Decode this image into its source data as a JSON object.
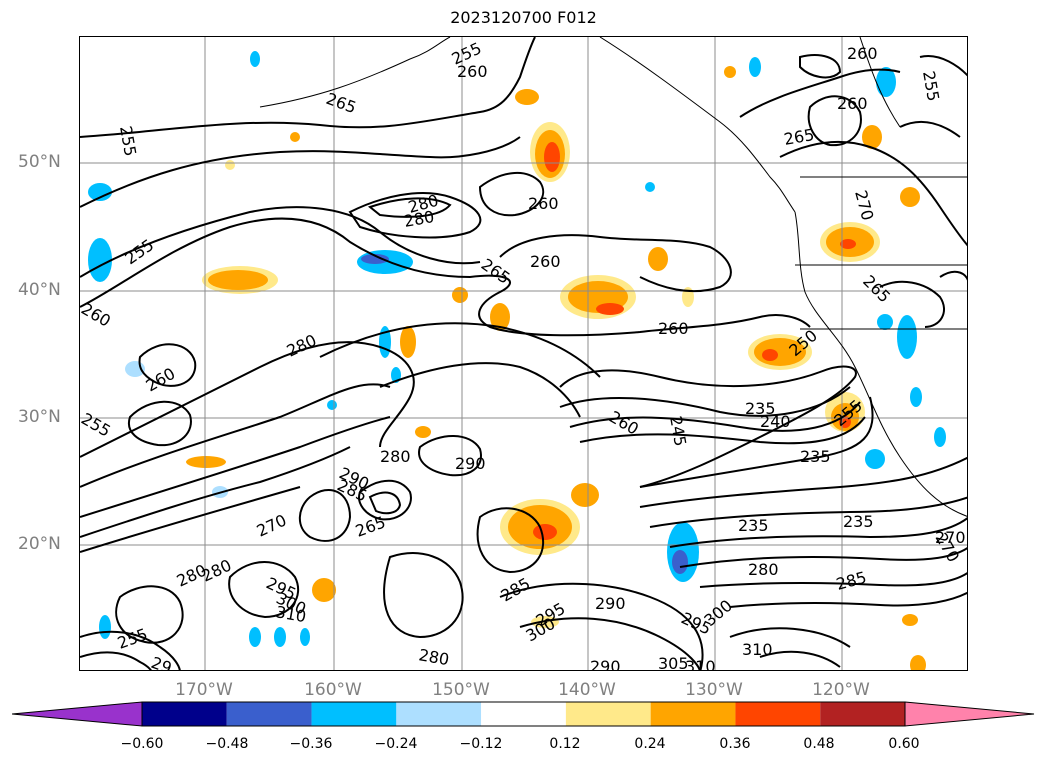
{
  "title": "2023120700 F012",
  "lat_labels": [
    "50°N",
    "40°N",
    "30°N",
    "20°N"
  ],
  "lon_labels": [
    "170°W",
    "160°W",
    "150°W",
    "140°W",
    "130°W",
    "120°W"
  ],
  "contour_labels": [
    "255",
    "260",
    "265",
    "255",
    "260",
    "265",
    "260",
    "255",
    "280",
    "260",
    "280",
    "265",
    "260",
    "260",
    "260",
    "270",
    "265",
    "255",
    "280",
    "260",
    "255",
    "250",
    "245",
    "260",
    "235",
    "240",
    "235",
    "255",
    "290",
    "280",
    "290",
    "285",
    "270",
    "265",
    "280",
    "285",
    "295",
    "300",
    "310",
    "290",
    "295",
    "300",
    "310",
    "235",
    "280",
    "285",
    "235",
    "270",
    "295",
    "300",
    "290",
    "280",
    "305",
    "310",
    "255",
    "29",
    "280",
    "270"
  ],
  "colorbar": {
    "ticks": [
      "−0.60",
      "−0.48",
      "−0.36",
      "−0.24",
      "−0.12",
      "0.12",
      "0.24",
      "0.36",
      "0.48",
      "0.60"
    ],
    "colors": [
      "#9932CC",
      "#00008B",
      "#3A5FCD",
      "#00BFFF",
      "#ADDFFF",
      "#FFFFFF",
      "#FFE98A",
      "#FFA500",
      "#FF4500",
      "#B22222",
      "#FF82AB"
    ]
  },
  "colors": {
    "contour": "#000000",
    "grid": "#8c8c8c",
    "axis_label": "#808080"
  }
}
